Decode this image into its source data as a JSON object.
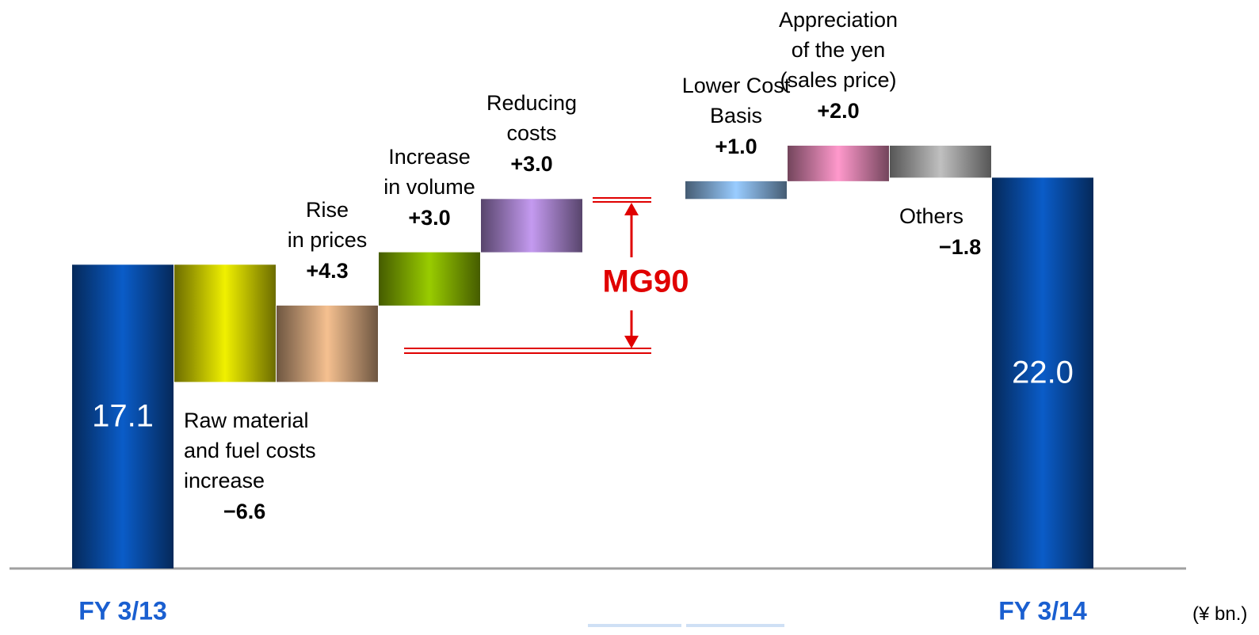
{
  "chart_data": {
    "type": "waterfall",
    "categories": [
      "FY 3/13",
      "Raw material\nand fuel costs\nincrease",
      "Rise\nin prices",
      "Increase\nin volume",
      "Reducing\ncosts",
      null,
      "Lower Cost\nBasis",
      "Appreciation\nof the yen\n(sales price)",
      "Others",
      "FY 3/14"
    ],
    "values": [
      17.1,
      -6.6,
      4.3,
      3.0,
      3.0,
      null,
      1.0,
      2.0,
      -1.8,
      22.0
    ],
    "value_labels": [
      "17.1",
      "−6.6",
      "+4.3",
      "+3.0",
      "+3.0",
      null,
      "+1.0",
      "+2.0",
      "−1.8",
      "22.0"
    ],
    "total": [
      true,
      false,
      false,
      false,
      false,
      false,
      false,
      false,
      false,
      true
    ],
    "colors": [
      "#0a5cc8",
      "#f0f000",
      "#f5c090",
      "#99cc00",
      "#c49af0",
      null,
      "#99ccff",
      "#ff99cc",
      "#c0c0c0",
      "#0a5cc8"
    ],
    "ylim": [
      0,
      32
    ],
    "annotation": "MG90",
    "unit_label": "(¥ bn.)"
  }
}
